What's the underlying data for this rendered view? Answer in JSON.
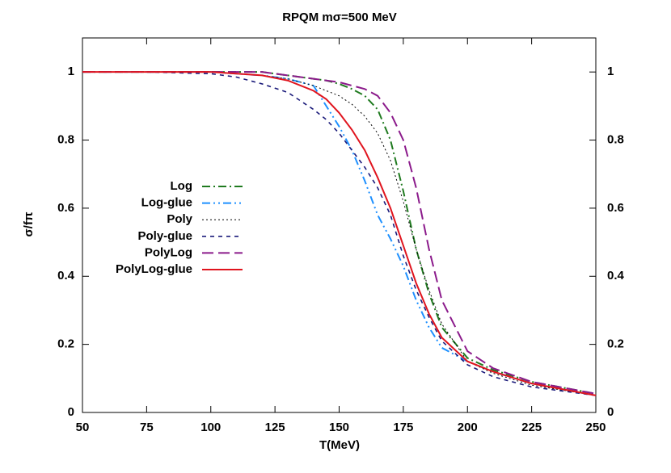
{
  "chart_data": {
    "type": "line",
    "title": "RPQM   mσ=500 MeV",
    "x_label": "T(MeV)",
    "y_label": "σ/fπ",
    "x": [
      50,
      75,
      100,
      110,
      120,
      130,
      140,
      145,
      150,
      155,
      160,
      165,
      170,
      175,
      180,
      185,
      190,
      200,
      210,
      225,
      250
    ],
    "series": [
      {
        "name": "Log",
        "color": "#1f7a1f",
        "values": [
          1,
          1,
          1,
          1,
          1,
          0.99,
          0.98,
          0.975,
          0.965,
          0.95,
          0.93,
          0.89,
          0.8,
          0.65,
          0.48,
          0.35,
          0.25,
          0.16,
          0.125,
          0.09,
          0.055
        ]
      },
      {
        "name": "Log-glue",
        "color": "#1e90ff",
        "values": [
          1,
          1,
          1,
          0.995,
          0.99,
          0.98,
          0.96,
          0.9,
          0.84,
          0.77,
          0.68,
          0.58,
          0.51,
          0.43,
          0.33,
          0.25,
          0.19,
          0.15,
          0.12,
          0.085,
          0.05
        ]
      },
      {
        "name": "Poly",
        "color": "#000000",
        "values": [
          1,
          1,
          1,
          0.995,
          0.99,
          0.98,
          0.96,
          0.945,
          0.93,
          0.905,
          0.87,
          0.82,
          0.74,
          0.62,
          0.48,
          0.36,
          0.26,
          0.15,
          0.115,
          0.08,
          0.05
        ]
      },
      {
        "name": "Poly-glue",
        "color": "#1a1a7a",
        "values": [
          1,
          1,
          0.995,
          0.985,
          0.965,
          0.94,
          0.89,
          0.86,
          0.82,
          0.77,
          0.72,
          0.66,
          0.58,
          0.46,
          0.36,
          0.28,
          0.21,
          0.14,
          0.105,
          0.075,
          0.05
        ]
      },
      {
        "name": "PolyLog",
        "color": "#8b1a8b",
        "values": [
          1,
          1,
          1,
          1,
          1,
          0.99,
          0.98,
          0.975,
          0.97,
          0.96,
          0.95,
          0.93,
          0.88,
          0.8,
          0.66,
          0.48,
          0.33,
          0.18,
          0.13,
          0.09,
          0.055
        ]
      },
      {
        "name": "PolyLog-glue",
        "color": "#e0141e",
        "values": [
          1,
          1,
          1,
          0.995,
          0.99,
          0.975,
          0.945,
          0.92,
          0.88,
          0.83,
          0.77,
          0.69,
          0.6,
          0.49,
          0.38,
          0.29,
          0.22,
          0.15,
          0.12,
          0.085,
          0.05
        ]
      }
    ],
    "xlim": [
      50,
      250
    ],
    "xticks": [
      50,
      75,
      100,
      125,
      150,
      175,
      200,
      225,
      250
    ],
    "ylim": [
      0,
      1.1
    ],
    "yticks": [
      0,
      0.2,
      0.4,
      0.6,
      0.8,
      1
    ],
    "y2lim": [
      0,
      1.1
    ],
    "y2ticks": [
      0,
      0.2,
      0.4,
      0.6,
      0.8,
      1
    ],
    "legend": "left"
  }
}
